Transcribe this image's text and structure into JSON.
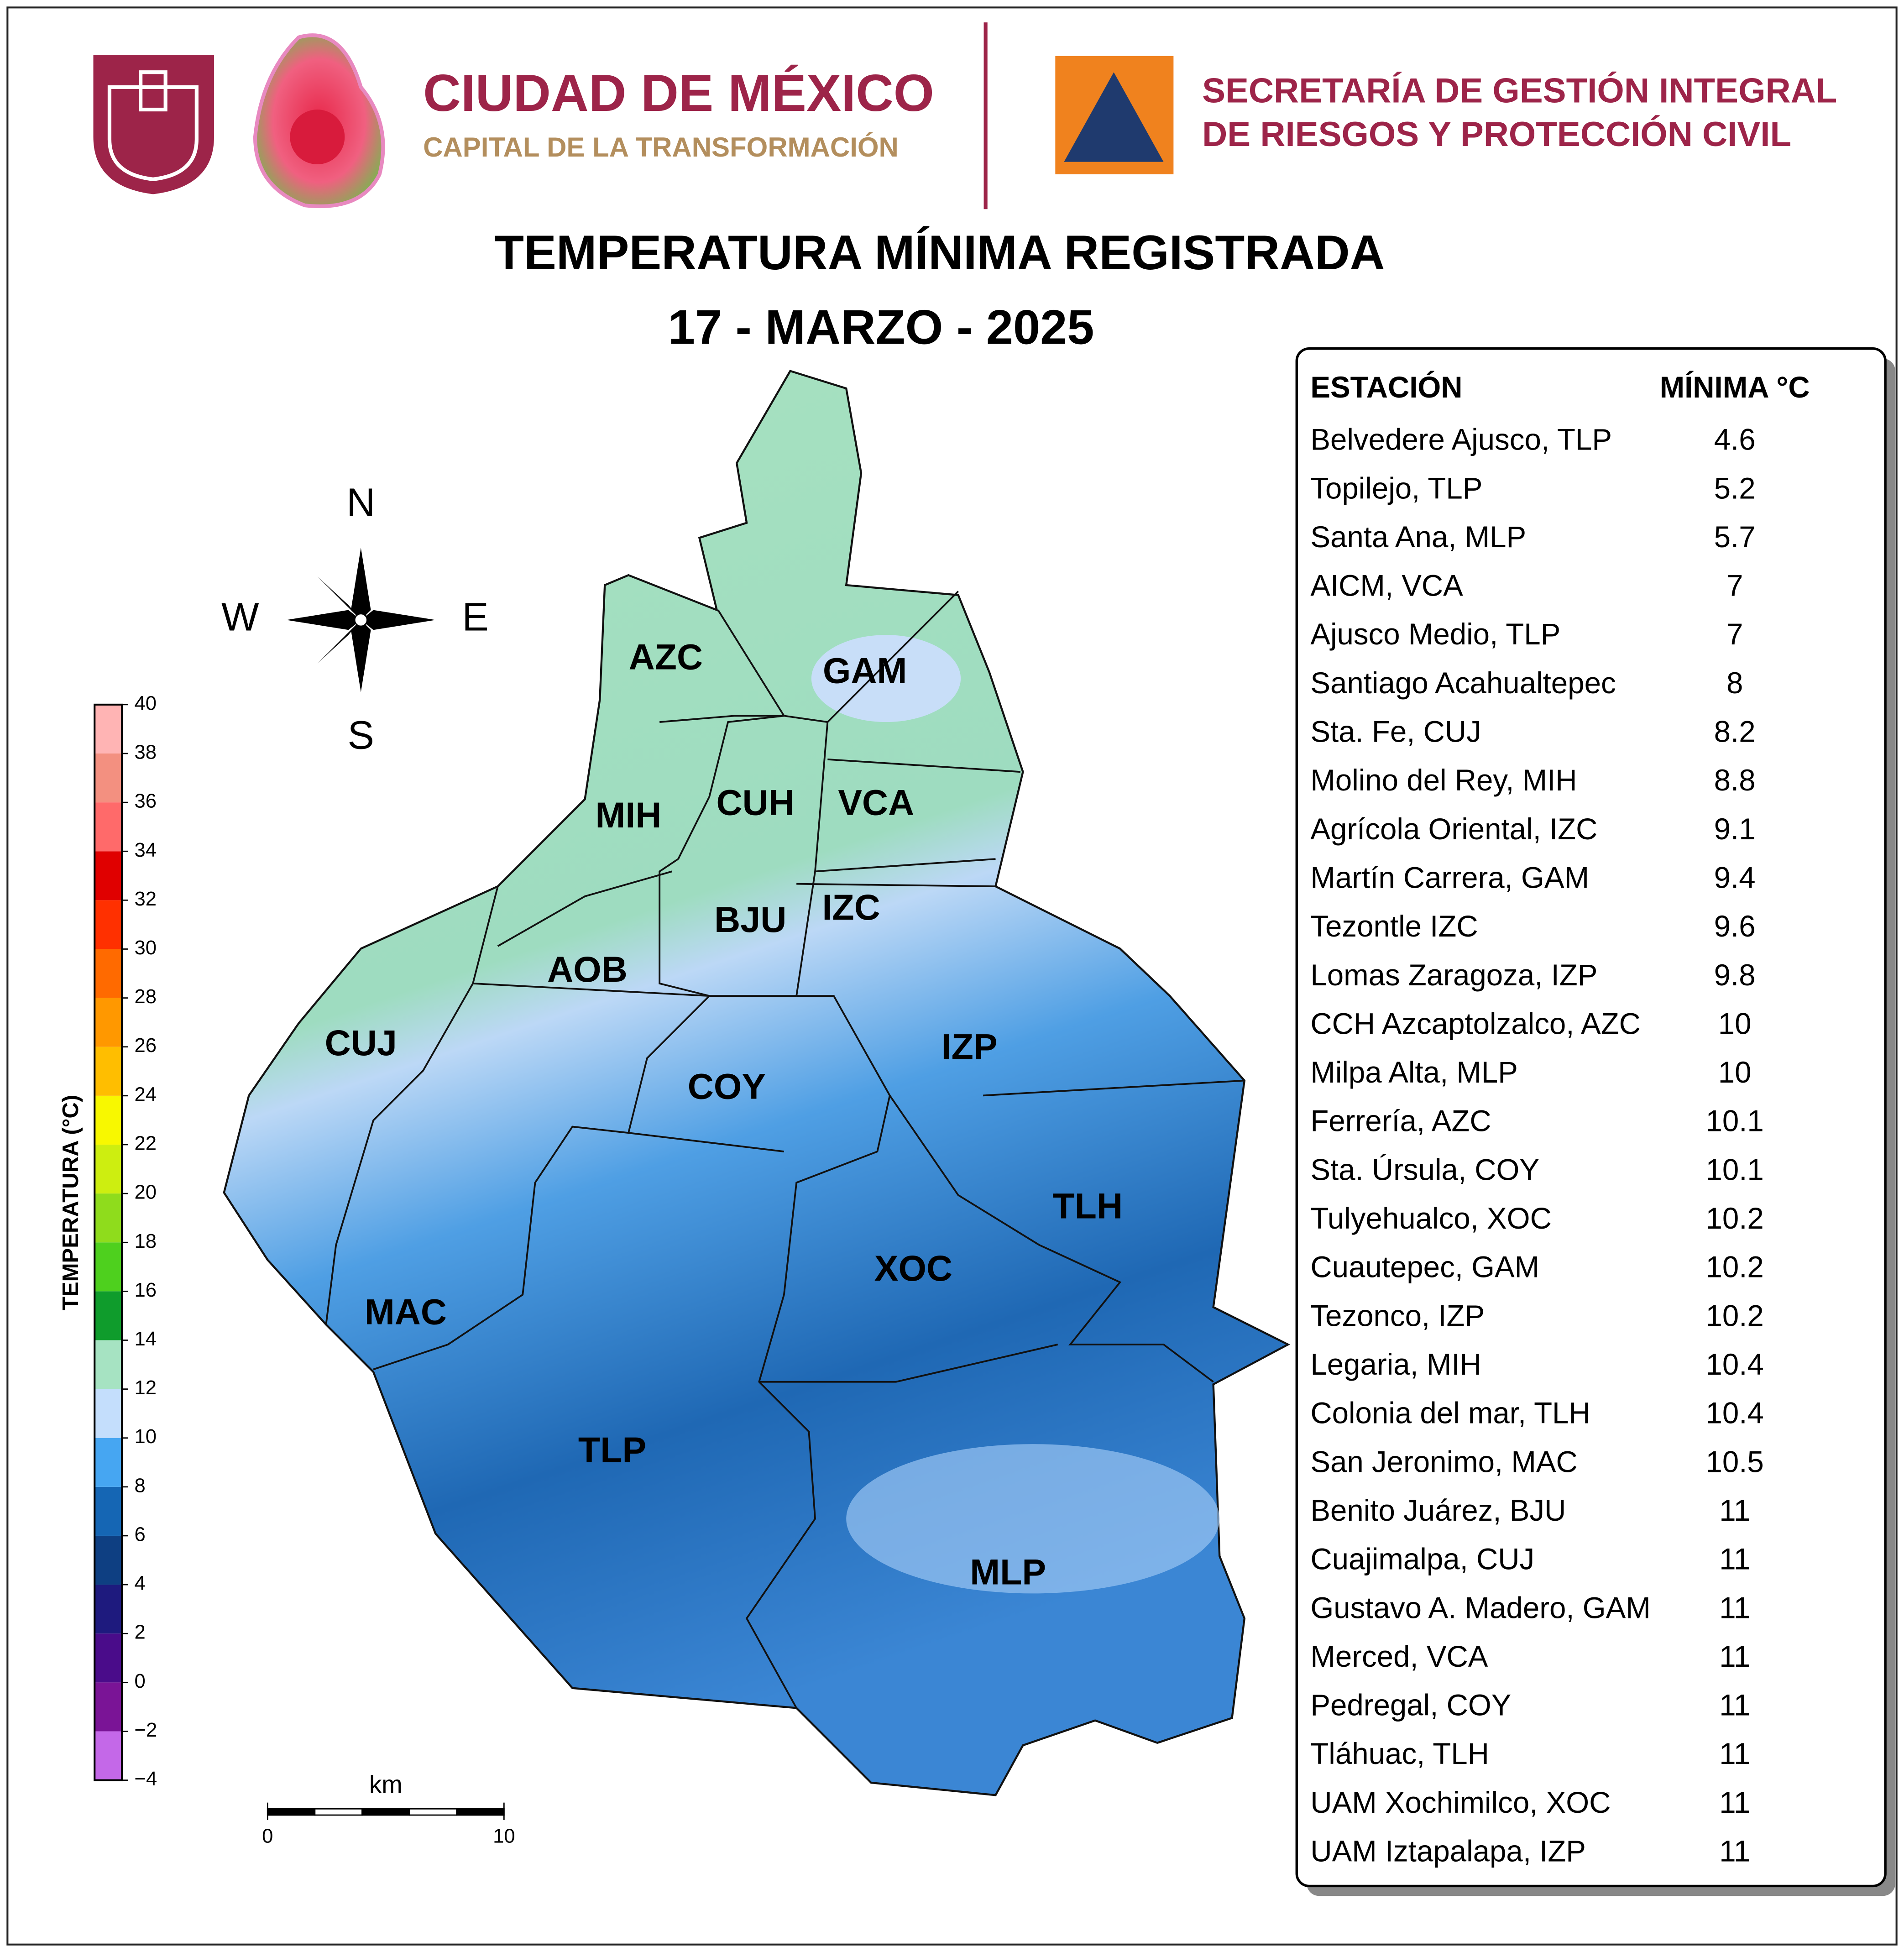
{
  "header": {
    "org_name": "CIUDAD DE MÉXICO",
    "org_tagline": "CAPITAL DE LA TRANSFORMACIÓN",
    "agency_line1": "SECRETARÍA DE GESTIÓN INTEGRAL",
    "agency_line2": "DE RIESGOS Y PROTECCIÓN CIVIL"
  },
  "title": "TEMPERATURA MÍNIMA REGISTRADA",
  "date": "17 - MARZO - 2025",
  "compass": {
    "north": "N",
    "east": "E",
    "south": "S",
    "west": "W"
  },
  "colorbar": {
    "label": "TEMPERATURA (°C)",
    "ticks": [
      {
        "value": -4,
        "label": "−4"
      },
      {
        "value": -2,
        "label": "−2"
      },
      0,
      2,
      4,
      6,
      8,
      10,
      12,
      14,
      16,
      18,
      20,
      22,
      24,
      26,
      28,
      30,
      32,
      34,
      36,
      38,
      40
    ],
    "colors": [
      "#c468e8",
      "#7a1496",
      "#4a0c8a",
      "#1e1a7e",
      "#0e3f82",
      "#1566b4",
      "#46a6f2",
      "#c4defc",
      "#a6e3c2",
      "#0f9c2c",
      "#4ed01e",
      "#8fdc1c",
      "#cdee10",
      "#f8f800",
      "#ffbe00",
      "#ff9800",
      "#ff6a00",
      "#ff3000",
      "#e00000",
      "#ff6a6a",
      "#f39080",
      "#ffb4b4",
      "#dedede"
    ]
  },
  "scale_bar": {
    "unit": "km",
    "ticks": [
      0,
      10
    ]
  },
  "districts": [
    "AZC",
    "GAM",
    "MIH",
    "CUH",
    "VCA",
    "IZC",
    "BJU",
    "AOB",
    "CUJ",
    "IZP",
    "COY",
    "TLH",
    "XOC",
    "MAC",
    "TLP",
    "MLP"
  ],
  "table": {
    "headers": [
      "ESTACIÓN",
      "MÍNIMA °C"
    ],
    "rows": [
      [
        "Belvedere Ajusco, TLP",
        4.6
      ],
      [
        "Topilejo, TLP",
        5.2
      ],
      [
        "Santa Ana, MLP",
        5.7
      ],
      [
        "AICM, VCA",
        7
      ],
      [
        "Ajusco Medio, TLP",
        7
      ],
      [
        "Santiago Acahualtepec",
        8
      ],
      [
        "Sta. Fe, CUJ",
        8.2
      ],
      [
        "Molino del Rey, MIH",
        8.8
      ],
      [
        "Agrícola Oriental, IZC",
        9.1
      ],
      [
        "Martín Carrera, GAM",
        9.4
      ],
      [
        "Tezontle IZC",
        9.6
      ],
      [
        "Lomas Zaragoza, IZP",
        9.8
      ],
      [
        "CCH Azcaptolzalco, AZC",
        10
      ],
      [
        "Milpa Alta, MLP",
        10
      ],
      [
        "Ferrería, AZC",
        10.1
      ],
      [
        "Sta. Úrsula, COY",
        10.1
      ],
      [
        "Tulyehualco, XOC",
        10.2
      ],
      [
        "Cuautepec, GAM",
        10.2
      ],
      [
        "Tezonco, IZP",
        10.2
      ],
      [
        "Legaria, MIH",
        10.4
      ],
      [
        "Colonia del mar, TLH",
        10.4
      ],
      [
        "San Jeronimo, MAC",
        10.5
      ],
      [
        "Benito Juárez, BJU",
        11
      ],
      [
        "Cuajimalpa, CUJ",
        11
      ],
      [
        "Gustavo A. Madero, GAM",
        11
      ],
      [
        "Merced, VCA",
        11
      ],
      [
        "Pedregal, COY",
        11
      ],
      [
        "Tláhuac, TLH",
        11
      ],
      [
        "UAM Xochimilco, XOC",
        11
      ],
      [
        "UAM Iztapalapa, IZP",
        11
      ]
    ]
  }
}
